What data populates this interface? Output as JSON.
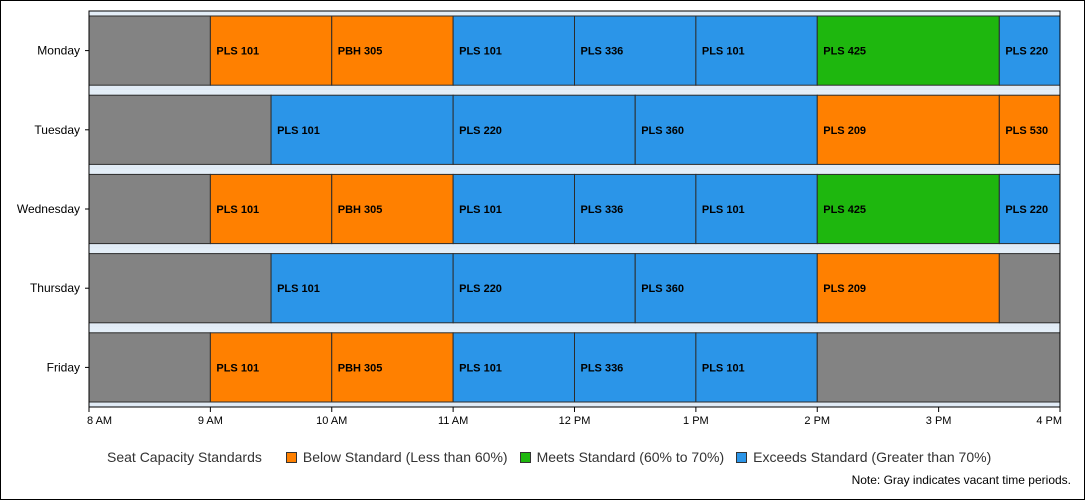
{
  "chart_data": {
    "type": "bar",
    "orientation": "horizontal-timeline",
    "x_axis": {
      "min": 8,
      "max": 16,
      "ticks": [
        {
          "value": 8,
          "label": "8 AM"
        },
        {
          "value": 9,
          "label": "9 AM"
        },
        {
          "value": 10,
          "label": "10 AM"
        },
        {
          "value": 11,
          "label": "11 AM"
        },
        {
          "value": 12,
          "label": "12 PM"
        },
        {
          "value": 13,
          "label": "1 PM"
        },
        {
          "value": 14,
          "label": "2 PM"
        },
        {
          "value": 15,
          "label": "3 PM"
        },
        {
          "value": 16,
          "label": "4 PM"
        }
      ]
    },
    "categories": [
      "Monday",
      "Tuesday",
      "Wednesday",
      "Thursday",
      "Friday"
    ],
    "rows": [
      {
        "day": "Monday",
        "segments": [
          {
            "start": 8,
            "end": 9,
            "status": "vacant",
            "label": ""
          },
          {
            "start": 9,
            "end": 10,
            "status": "below",
            "label": "PLS 101"
          },
          {
            "start": 10,
            "end": 11,
            "status": "below",
            "label": "PBH 305"
          },
          {
            "start": 11,
            "end": 12,
            "status": "exceeds",
            "label": "PLS 101"
          },
          {
            "start": 12,
            "end": 13,
            "status": "exceeds",
            "label": "PLS 336"
          },
          {
            "start": 13,
            "end": 14,
            "status": "exceeds",
            "label": "PLS 101"
          },
          {
            "start": 14,
            "end": 15.5,
            "status": "meets",
            "label": "PLS 425"
          },
          {
            "start": 15.5,
            "end": 16,
            "status": "exceeds",
            "label": "PLS 220"
          }
        ]
      },
      {
        "day": "Tuesday",
        "segments": [
          {
            "start": 8,
            "end": 9.5,
            "status": "vacant",
            "label": ""
          },
          {
            "start": 9.5,
            "end": 11,
            "status": "exceeds",
            "label": "PLS 101"
          },
          {
            "start": 11,
            "end": 12.5,
            "status": "exceeds",
            "label": "PLS 220"
          },
          {
            "start": 12.5,
            "end": 14,
            "status": "exceeds",
            "label": "PLS 360"
          },
          {
            "start": 14,
            "end": 15.5,
            "status": "below",
            "label": "PLS 209"
          },
          {
            "start": 15.5,
            "end": 16,
            "status": "below",
            "label": "PLS 530"
          }
        ]
      },
      {
        "day": "Wednesday",
        "segments": [
          {
            "start": 8,
            "end": 9,
            "status": "vacant",
            "label": ""
          },
          {
            "start": 9,
            "end": 10,
            "status": "below",
            "label": "PLS 101"
          },
          {
            "start": 10,
            "end": 11,
            "status": "below",
            "label": "PBH 305"
          },
          {
            "start": 11,
            "end": 12,
            "status": "exceeds",
            "label": "PLS 101"
          },
          {
            "start": 12,
            "end": 13,
            "status": "exceeds",
            "label": "PLS 336"
          },
          {
            "start": 13,
            "end": 14,
            "status": "exceeds",
            "label": "PLS 101"
          },
          {
            "start": 14,
            "end": 15.5,
            "status": "meets",
            "label": "PLS 425"
          },
          {
            "start": 15.5,
            "end": 16,
            "status": "exceeds",
            "label": "PLS 220"
          }
        ]
      },
      {
        "day": "Thursday",
        "segments": [
          {
            "start": 8,
            "end": 9.5,
            "status": "vacant",
            "label": ""
          },
          {
            "start": 9.5,
            "end": 11,
            "status": "exceeds",
            "label": "PLS 101"
          },
          {
            "start": 11,
            "end": 12.5,
            "status": "exceeds",
            "label": "PLS 220"
          },
          {
            "start": 12.5,
            "end": 14,
            "status": "exceeds",
            "label": "PLS 360"
          },
          {
            "start": 14,
            "end": 15.5,
            "status": "below",
            "label": "PLS 209"
          },
          {
            "start": 15.5,
            "end": 16,
            "status": "vacant",
            "label": ""
          }
        ]
      },
      {
        "day": "Friday",
        "segments": [
          {
            "start": 8,
            "end": 9,
            "status": "vacant",
            "label": ""
          },
          {
            "start": 9,
            "end": 10,
            "status": "below",
            "label": "PLS 101"
          },
          {
            "start": 10,
            "end": 11,
            "status": "below",
            "label": "PBH 305"
          },
          {
            "start": 11,
            "end": 12,
            "status": "exceeds",
            "label": "PLS 101"
          },
          {
            "start": 12,
            "end": 13,
            "status": "exceeds",
            "label": "PLS 336"
          },
          {
            "start": 13,
            "end": 14,
            "status": "exceeds",
            "label": "PLS 101"
          },
          {
            "start": 14,
            "end": 16,
            "status": "vacant",
            "label": ""
          }
        ]
      }
    ],
    "colors": {
      "below": "#ff8000",
      "meets": "#1eb70e",
      "exceeds": "#2b95e8",
      "vacant": "#838383"
    },
    "legend": {
      "title": "Seat Capacity Standards",
      "placement": "bottom",
      "items": [
        {
          "key": "below",
          "label": "Below Standard (Less than 60%)"
        },
        {
          "key": "meets",
          "label": "Meets Standard (60% to 70%)"
        },
        {
          "key": "exceeds",
          "label": "Exceeds Standard (Greater than 70%)"
        }
      ]
    },
    "note": "Note: Gray indicates vacant time periods."
  }
}
